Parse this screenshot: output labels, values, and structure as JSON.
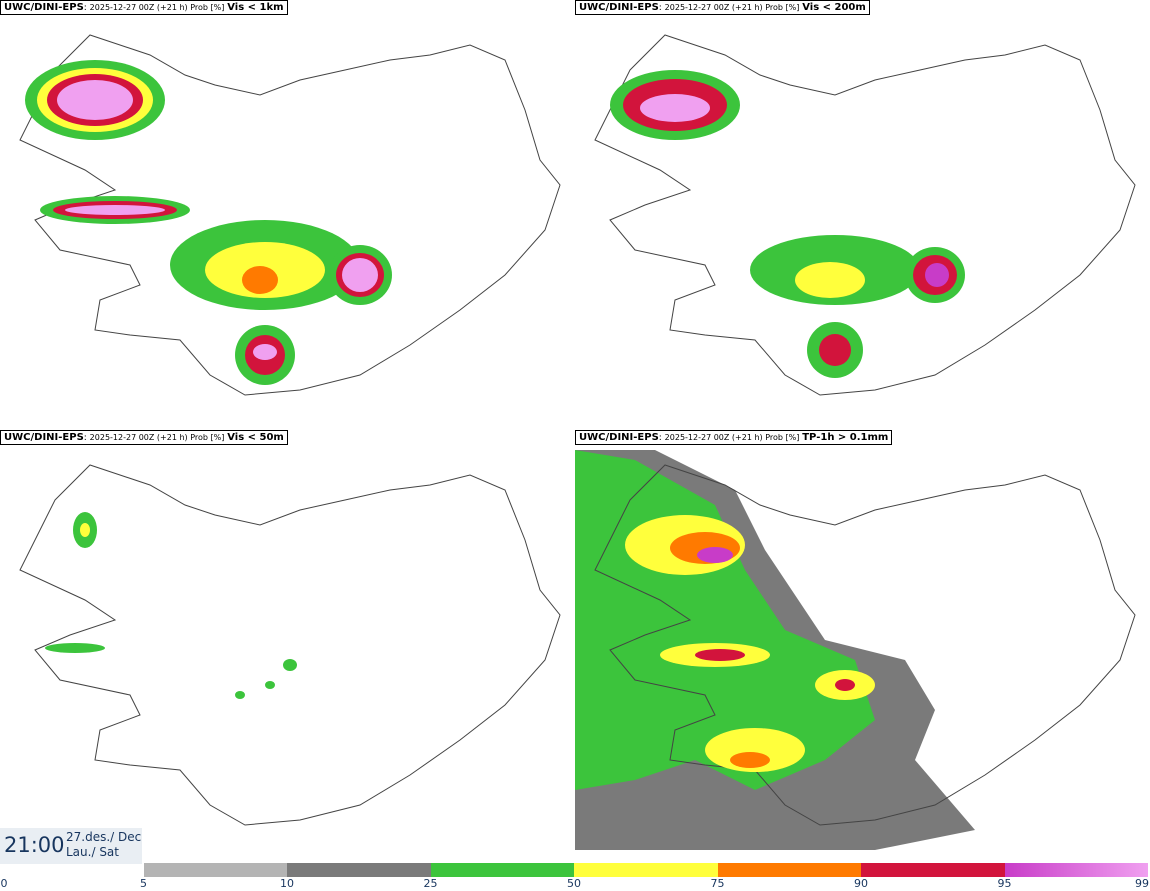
{
  "panels": [
    {
      "model": "UWC/DINI-EPS",
      "run": "2025-12-27 00Z (+21 h) Prob [%]",
      "variable": "Vis < 1km"
    },
    {
      "model": "UWC/DINI-EPS",
      "run": "2025-12-27 00Z (+21 h) Prob [%]",
      "variable": "Vis < 200m"
    },
    {
      "model": "UWC/DINI-EPS",
      "run": "2025-12-27 00Z (+21 h) Prob [%]",
      "variable": "Vis < 50m"
    },
    {
      "model": "UWC/DINI-EPS",
      "run": "2025-12-27 00Z (+21 h) Prob [%]",
      "variable": "TP-1h > 0.1mm"
    }
  ],
  "valid_time": {
    "time": "21:00",
    "date_line1": "27.des./ Dec",
    "date_line2": "Lau./ Sat"
  },
  "legend": {
    "ticks": [
      "0",
      "5",
      "10",
      "25",
      "50",
      "75",
      "90",
      "95",
      "99"
    ],
    "bins": [
      {
        "from": 5,
        "to": 10,
        "color": "#b4b4b4"
      },
      {
        "from": 10,
        "to": 25,
        "color": "#7a7a7a"
      },
      {
        "from": 25,
        "to": 50,
        "color": "#3cc43c"
      },
      {
        "from": 50,
        "to": 75,
        "color": "#ffff3c"
      },
      {
        "from": 75,
        "to": 90,
        "color": "#ff7a00"
      },
      {
        "from": 90,
        "to": 95,
        "color": "#d2143c"
      },
      {
        "from": 95,
        "to": 99,
        "color": "#c83cc8"
      }
    ],
    "top_color": "#f0a0f0"
  }
}
